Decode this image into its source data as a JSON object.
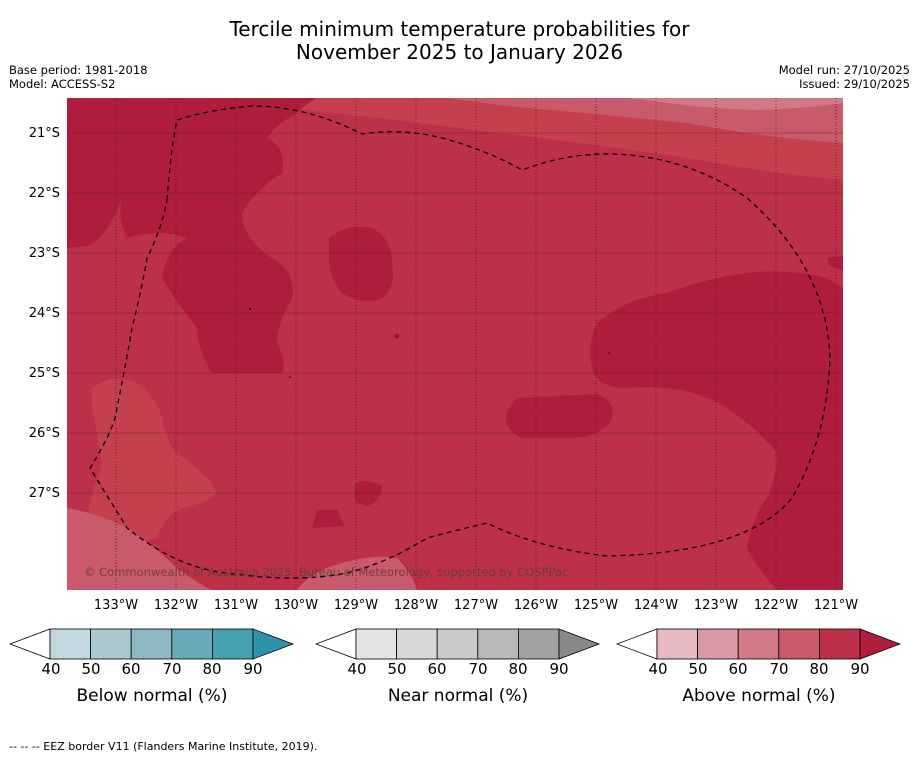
{
  "title": {
    "line1": "Tercile minimum temperature probabilities for",
    "line2": "November 2025 to January 2026"
  },
  "meta": {
    "base_period": "Base period: 1981-2018",
    "model": "Model: ACCESS-S2",
    "model_run": "Model run: 27/10/2025",
    "issued": "Issued: 29/10/2025"
  },
  "latitudes": [
    "21°S",
    "22°S",
    "23°S",
    "24°S",
    "25°S",
    "26°S",
    "27°S"
  ],
  "longitudes": [
    "133°W",
    "132°W",
    "131°W",
    "130°W",
    "129°W",
    "128°W",
    "127°W",
    "126°W",
    "125°W",
    "124°W",
    "123°W",
    "122°W",
    "121°W"
  ],
  "copyright": "© Commonwealth of Australia 2025, Bureau of Meteorology, supported by COSPPac",
  "colorbars": [
    {
      "label": "Below normal (%)",
      "colors": [
        "#c2d8de",
        "#a9cad1",
        "#8db8c4",
        "#6aaab8",
        "#45a0b2",
        "#2e93a8"
      ]
    },
    {
      "label": "Near normal (%)",
      "colors": [
        "#e4e4e4",
        "#d8d8d8",
        "#cacaca",
        "#b8b8b8",
        "#a2a2a2",
        "#888888"
      ]
    },
    {
      "label": "Above normal (%)",
      "colors": [
        "#e7b9c1",
        "#d99aa5",
        "#d17a86",
        "#c85a6c",
        "#bd3049",
        "#b01c3c"
      ]
    }
  ],
  "colorbar_ticks": [
    "40",
    "50",
    "60",
    "70",
    "80",
    "90"
  ],
  "footnote": "--  --  -- EEZ border V11 (Flanders Marine Institute, 2019)."
}
